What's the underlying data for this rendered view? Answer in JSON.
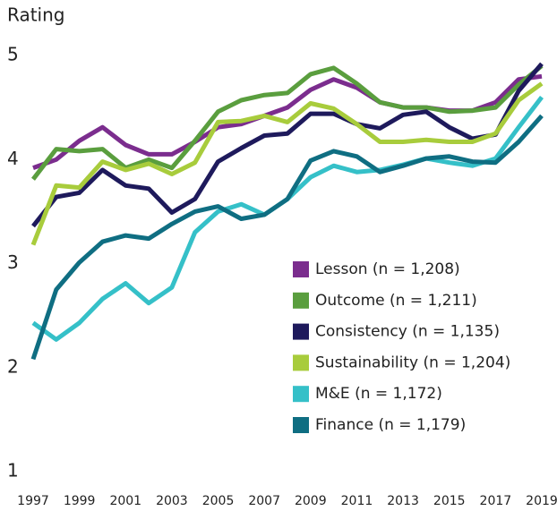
{
  "chart_data": {
    "type": "line",
    "y_label": "Rating",
    "x": [
      1997,
      1998,
      1999,
      2000,
      2001,
      2002,
      2003,
      2004,
      2005,
      2006,
      2007,
      2008,
      2009,
      2010,
      2011,
      2012,
      2013,
      2014,
      2015,
      2016,
      2017,
      2018,
      2019
    ],
    "xlim": [
      1997,
      2019
    ],
    "xticks": [
      1997,
      1999,
      2001,
      2003,
      2005,
      2007,
      2009,
      2011,
      2013,
      2015,
      2017,
      2019
    ],
    "ylim": [
      1,
      5
    ],
    "yticks": [
      1,
      2,
      3,
      4,
      5
    ],
    "series": [
      {
        "name": "Lesson (n = 1,208)",
        "color": "#7b2d8e",
        "values": [
          3.92,
          4.0,
          4.18,
          4.31,
          4.14,
          4.05,
          4.05,
          4.17,
          4.31,
          4.34,
          4.42,
          4.5,
          4.67,
          4.77,
          4.69,
          4.55,
          4.5,
          4.5,
          4.47,
          4.47,
          4.55,
          4.77,
          4.8
        ]
      },
      {
        "name": "Outcome (n = 1,211)",
        "color": "#5a9e3e",
        "values": [
          3.81,
          4.1,
          4.08,
          4.1,
          3.92,
          4.0,
          3.92,
          4.18,
          4.46,
          4.57,
          4.62,
          4.64,
          4.82,
          4.88,
          4.73,
          4.55,
          4.5,
          4.5,
          4.46,
          4.47,
          4.5,
          4.72,
          4.9
        ]
      },
      {
        "name": "Consistency (n = 1,135)",
        "color": "#1e1a5c",
        "values": [
          3.36,
          3.64,
          3.68,
          3.9,
          3.75,
          3.72,
          3.49,
          3.62,
          3.98,
          4.11,
          4.23,
          4.25,
          4.44,
          4.44,
          4.34,
          4.3,
          4.43,
          4.46,
          4.31,
          4.2,
          4.24,
          4.66,
          4.92
        ]
      },
      {
        "name": "Sustainability (n = 1,204)",
        "color": "#a8cc3c",
        "values": [
          3.18,
          3.75,
          3.73,
          3.98,
          3.9,
          3.96,
          3.86,
          3.97,
          4.36,
          4.37,
          4.42,
          4.36,
          4.54,
          4.49,
          4.34,
          4.17,
          4.17,
          4.19,
          4.17,
          4.17,
          4.25,
          4.57,
          4.73
        ]
      },
      {
        "name": "M&E (n = 1,172)",
        "color": "#35c0c8",
        "values": [
          2.43,
          2.27,
          2.43,
          2.66,
          2.81,
          2.62,
          2.77,
          3.3,
          3.5,
          3.57,
          3.47,
          3.62,
          3.83,
          3.94,
          3.88,
          3.9,
          3.95,
          4.01,
          3.97,
          3.94,
          4.01,
          4.31,
          4.6
        ]
      },
      {
        "name": "Finance (n = 1,179)",
        "color": "#0f6e82",
        "values": [
          2.08,
          2.75,
          3.01,
          3.21,
          3.27,
          3.24,
          3.38,
          3.5,
          3.55,
          3.43,
          3.47,
          3.62,
          3.99,
          4.08,
          4.03,
          3.88,
          3.94,
          4.01,
          4.03,
          3.98,
          3.97,
          4.17,
          4.42
        ]
      }
    ]
  }
}
